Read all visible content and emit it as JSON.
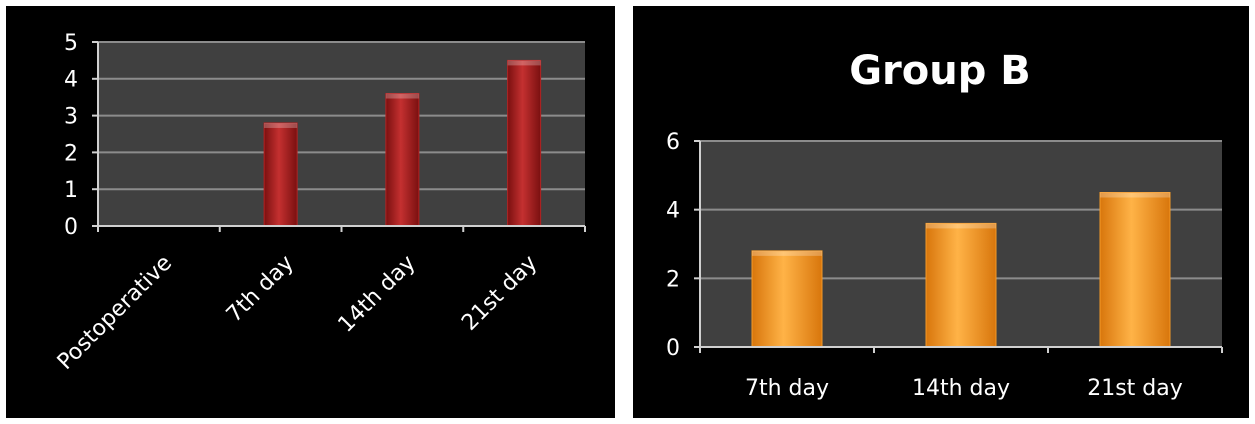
{
  "chart_data": [
    {
      "type": "bar",
      "title": "",
      "xlabel": "",
      "ylabel": "",
      "categories": [
        "Postoperative",
        "7th day",
        "14th day",
        "21st day"
      ],
      "values": [
        0,
        2.8,
        3.6,
        4.5
      ],
      "ylim": [
        0,
        5
      ],
      "yticks": [
        "0",
        "1",
        "2",
        "3",
        "4",
        "5"
      ],
      "grid": true,
      "legend": "none",
      "bar_color": "#b32222",
      "plot_bg": "#404040"
    },
    {
      "type": "bar",
      "title": "Group B",
      "xlabel": "",
      "ylabel": "",
      "categories": [
        "7th day",
        "14th day",
        "21st day"
      ],
      "values": [
        2.8,
        3.6,
        4.5
      ],
      "ylim": [
        0,
        6
      ],
      "yticks": [
        "0",
        "2",
        "4",
        "6"
      ],
      "grid": true,
      "legend": "none",
      "bar_color": "#f59a28",
      "plot_bg": "#404040"
    }
  ]
}
